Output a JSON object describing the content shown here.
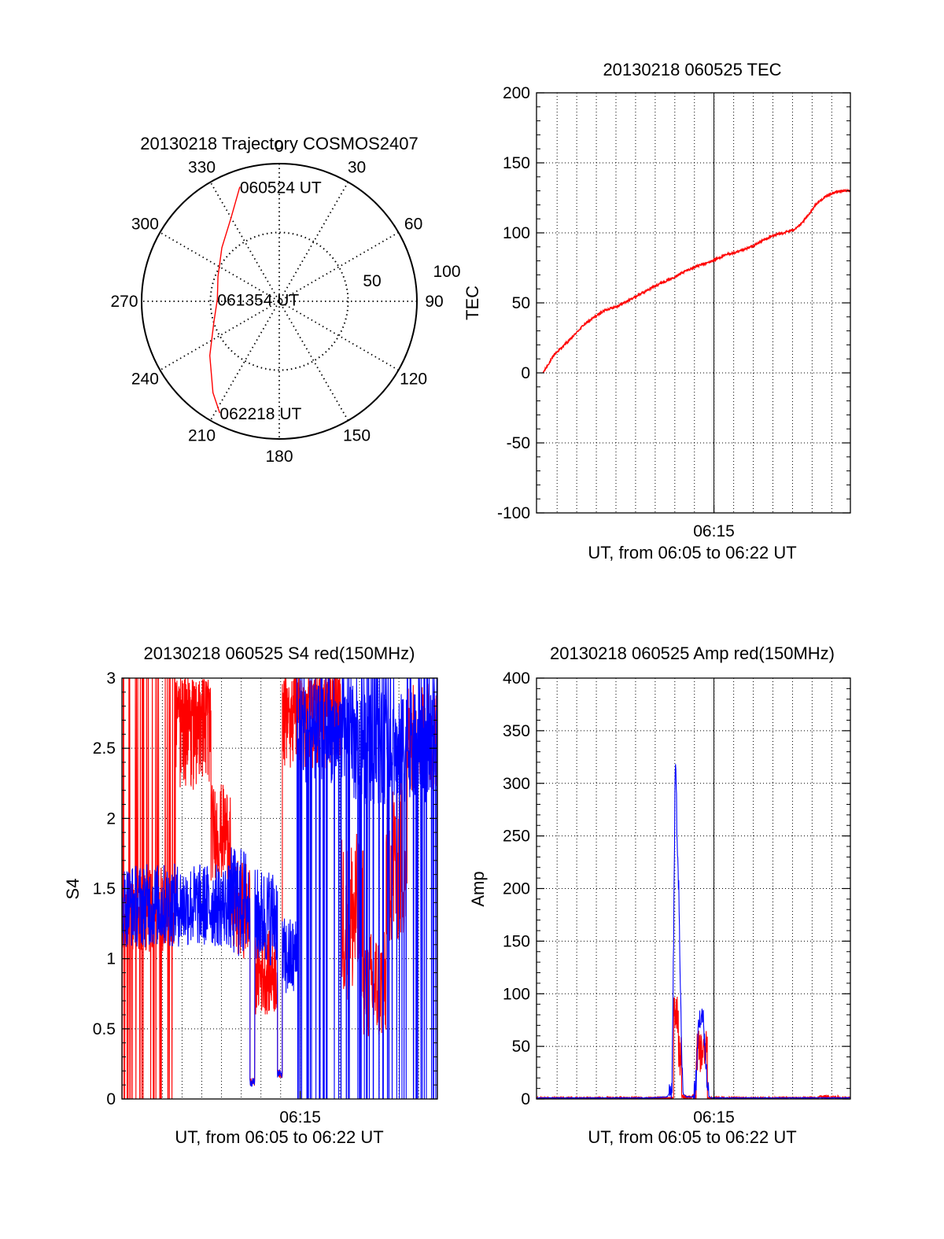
{
  "chart_data": [
    {
      "id": "trajectory",
      "type": "polar",
      "title": "20130218 Trajectory COSMOS2407",
      "angle_labels": [
        "0",
        "30",
        "60",
        "90",
        "120",
        "150",
        "180",
        "210",
        "240",
        "270",
        "300",
        "330"
      ],
      "radial_labels": [
        "50",
        "100"
      ],
      "r_max": 100,
      "grid": true,
      "series": [
        {
          "color": "#ff0000",
          "points": [
            {
              "az": 341,
              "r": 88
            },
            {
              "az": 330,
              "r": 70
            },
            {
              "az": 313,
              "r": 57
            },
            {
              "az": 292,
              "r": 48
            },
            {
              "az": 272,
              "r": 45
            },
            {
              "az": 252,
              "r": 50
            },
            {
              "az": 232,
              "r": 64
            },
            {
              "az": 216,
              "r": 82
            },
            {
              "az": 208,
              "r": 92
            }
          ]
        }
      ],
      "annotations": [
        {
          "text": "060524 UT",
          "az": 341,
          "r": 88
        },
        {
          "text": "061354 UT",
          "az": 272,
          "r": 45
        },
        {
          "text": "062218 UT",
          "az": 208,
          "r": 92
        }
      ]
    },
    {
      "id": "tec",
      "type": "line",
      "title": "20130218 060525 TEC",
      "xlabel": "UT, from 06:05 to 06:22 UT",
      "ylabel": "TEC",
      "xlim": [
        365,
        1338
      ],
      "ylim": [
        -100,
        200
      ],
      "yticks": [
        -100,
        -50,
        0,
        50,
        100,
        150,
        200
      ],
      "xtick_labels": [
        {
          "t": 915,
          "label": "06:15"
        }
      ],
      "grid": true,
      "series": [
        {
          "color": "#ff0000",
          "x": [
            385,
            420,
            470,
            510,
            545,
            580,
            620,
            660,
            700,
            740,
            780,
            820,
            860,
            900,
            940,
            960,
            985,
            1010,
            1040,
            1070,
            1100,
            1130,
            1160,
            1185,
            1205,
            1230,
            1250,
            1270,
            1290,
            1310,
            1338
          ],
          "y": [
            0,
            13,
            24,
            34,
            40,
            45,
            48,
            53,
            58,
            63,
            67,
            72,
            76,
            79,
            83,
            85,
            86,
            88,
            91,
            95,
            98,
            100,
            102,
            106,
            112,
            120,
            124,
            127,
            129,
            130,
            130
          ]
        }
      ]
    },
    {
      "id": "s4",
      "type": "line",
      "title": "20130218 060525 S4 red(150MHz)",
      "xlabel": "UT, from 06:05 to 06:22 UT",
      "ylabel": "S4",
      "xlim": [
        365,
        1338
      ],
      "ylim": [
        0,
        3
      ],
      "yticks": [
        0,
        0.5,
        1,
        1.5,
        2,
        2.5,
        3
      ],
      "xtick_labels": [
        {
          "t": 915,
          "label": "06:15"
        }
      ],
      "grid": true,
      "series": [
        {
          "color": "#ff0000",
          "segments": [
            {
              "from": 365,
              "to": 425,
              "mode": "spikes",
              "base": 1.3,
              "amp": 0.25,
              "spike_low": 0.0,
              "spike_high": 3.0
            },
            {
              "from": 425,
              "to": 530,
              "mode": "spikes",
              "base": 1.35,
              "amp": 0.3,
              "spike_low": 0.0,
              "spike_high": 3.0
            },
            {
              "from": 530,
              "to": 640,
              "mode": "dense",
              "base": 2.6,
              "amp": 0.4
            },
            {
              "from": 640,
              "to": 700,
              "mode": "noise",
              "base": 1.9,
              "amp": 0.35
            },
            {
              "from": 700,
              "to": 760,
              "mode": "noise",
              "base": 1.35,
              "amp": 0.35
            },
            {
              "from": 760,
              "to": 775,
              "mode": "noise",
              "base": 0.12,
              "amp": 0.03
            },
            {
              "from": 775,
              "to": 845,
              "mode": "noise",
              "base": 0.9,
              "amp": 0.3
            },
            {
              "from": 845,
              "to": 860,
              "mode": "noise",
              "base": 0.18,
              "amp": 0.03
            },
            {
              "from": 860,
              "to": 1040,
              "mode": "dense",
              "base": 2.7,
              "amp": 0.35
            },
            {
              "from": 1040,
              "to": 1110,
              "mode": "noise",
              "base": 1.3,
              "amp": 0.6
            },
            {
              "from": 1110,
              "to": 1180,
              "mode": "noise",
              "base": 0.8,
              "amp": 0.4
            },
            {
              "from": 1180,
              "to": 1245,
              "mode": "noise",
              "base": 1.7,
              "amp": 0.6
            },
            {
              "from": 1245,
              "to": 1338,
              "mode": "noise",
              "base": 2.6,
              "amp": 0.4
            }
          ]
        },
        {
          "color": "#0000ff",
          "segments": [
            {
              "from": 365,
              "to": 700,
              "mode": "noise",
              "base": 1.38,
              "amp": 0.3
            },
            {
              "from": 700,
              "to": 760,
              "mode": "noise",
              "base": 1.4,
              "amp": 0.4
            },
            {
              "from": 760,
              "to": 775,
              "mode": "noise",
              "base": 0.12,
              "amp": 0.03
            },
            {
              "from": 775,
              "to": 845,
              "mode": "noise",
              "base": 1.3,
              "amp": 0.35
            },
            {
              "from": 845,
              "to": 860,
              "mode": "noise",
              "base": 0.18,
              "amp": 0.03
            },
            {
              "from": 860,
              "to": 905,
              "mode": "noise",
              "base": 1.0,
              "amp": 0.3
            },
            {
              "from": 905,
              "to": 1080,
              "mode": "spikes",
              "base": 2.6,
              "amp": 0.35,
              "spike_low": 0.0,
              "spike_high": 3.0
            },
            {
              "from": 1080,
              "to": 1338,
              "mode": "spikes",
              "base": 2.5,
              "amp": 0.4,
              "spike_low": 0.0,
              "spike_high": 3.0
            }
          ]
        }
      ]
    },
    {
      "id": "amp",
      "type": "line",
      "title": "20130218 060525 Amp red(150MHz)",
      "xlabel": "UT, from 06:05 to 06:22 UT",
      "ylabel": "Amp",
      "xlim": [
        365,
        1338
      ],
      "ylim": [
        0,
        400
      ],
      "yticks": [
        0,
        50,
        100,
        150,
        200,
        250,
        300,
        350,
        400
      ],
      "xtick_labels": [
        {
          "t": 915,
          "label": "06:15"
        }
      ],
      "grid": true,
      "series": [
        {
          "color": "#ff0000",
          "segments": [
            {
              "from": 365,
              "to": 790,
              "mode": "noise",
              "base": 1,
              "amp": 1
            },
            {
              "from": 790,
              "to": 805,
              "mode": "noise",
              "base": 80,
              "amp": 20
            },
            {
              "from": 805,
              "to": 815,
              "mode": "noise",
              "base": 40,
              "amp": 20
            },
            {
              "from": 815,
              "to": 860,
              "mode": "noise",
              "base": 2,
              "amp": 2
            },
            {
              "from": 860,
              "to": 895,
              "mode": "noise",
              "base": 45,
              "amp": 20
            },
            {
              "from": 895,
              "to": 1240,
              "mode": "noise",
              "base": 1,
              "amp": 1
            },
            {
              "from": 1240,
              "to": 1300,
              "mode": "noise",
              "base": 2,
              "amp": 1.5
            },
            {
              "from": 1300,
              "to": 1338,
              "mode": "noise",
              "base": 1,
              "amp": 1
            }
          ]
        },
        {
          "color": "#0000ff",
          "x": [
            365,
            720,
            770,
            785,
            790,
            795,
            798,
            800,
            803,
            806,
            810,
            815,
            820,
            830,
            850,
            860,
            865,
            870,
            875,
            880,
            885,
            890,
            895,
            900,
            910,
            1000,
            1338
          ],
          "y": [
            1,
            1,
            2,
            10,
            150,
            320,
            300,
            260,
            230,
            200,
            120,
            40,
            5,
            2,
            2,
            20,
            60,
            80,
            70,
            85,
            60,
            40,
            10,
            2,
            1,
            1,
            1
          ],
          "jitter": 12
        }
      ]
    }
  ]
}
